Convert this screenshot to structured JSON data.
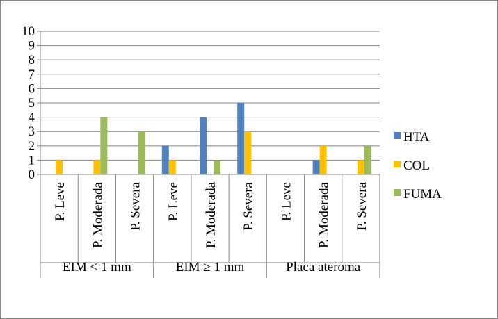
{
  "chart_data": {
    "type": "bar",
    "title": "",
    "xlabel": "",
    "ylabel": "",
    "ylim": [
      0,
      10
    ],
    "yticks": [
      0,
      1,
      2,
      3,
      4,
      5,
      6,
      7,
      8,
      9,
      10
    ],
    "grid": true,
    "legend_position": "right",
    "groups": [
      {
        "label": "EIM < 1 mm",
        "categories": [
          "P. Leve",
          "P. Moderada",
          "P. Severa"
        ]
      },
      {
        "label": "EIM ≥ 1 mm",
        "categories": [
          "P. Leve",
          "P. Moderada",
          "P. Severa"
        ]
      },
      {
        "label": "Placa ateroma",
        "categories": [
          "P. Leve",
          "P. Moderada",
          "P. Severa"
        ]
      }
    ],
    "categories": [
      "P. Leve",
      "P. Moderada",
      "P. Severa",
      "P. Leve",
      "P. Moderada",
      "P. Severa",
      "P. Leve",
      "P. Moderada",
      "P. Severa"
    ],
    "series": [
      {
        "name": "HTA",
        "color": "#4f81bd",
        "values": [
          0,
          0,
          0,
          2,
          4,
          5,
          0,
          1,
          0
        ]
      },
      {
        "name": "COL",
        "color": "#ffc000",
        "values": [
          1,
          1,
          0,
          1,
          0,
          3,
          0,
          2,
          1
        ]
      },
      {
        "name": "FUMA",
        "color": "#9bbb59",
        "values": [
          0,
          4,
          3,
          0,
          1,
          0,
          0,
          0,
          2
        ]
      }
    ]
  }
}
